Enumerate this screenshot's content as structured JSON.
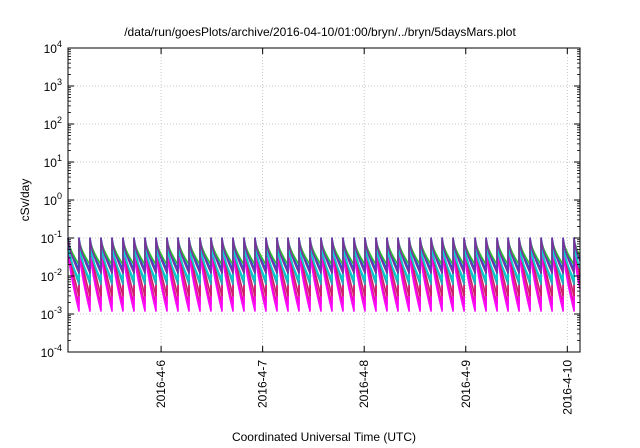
{
  "chart_data": {
    "type": "line",
    "title": "/data/run/goesPlots/archive/2016-04-10/01:00/bryn/../bryn/5daysMars.plot",
    "xlabel": "Coordinated Universal Time (UTC)",
    "ylabel": "cSv/day",
    "yscale": "log",
    "ylim": [
      0.0001,
      10000
    ],
    "xlim": [
      "2016-04-05 02:00",
      "2016-04-10 03:00"
    ],
    "grid": true,
    "x_ticks": [
      "2016-4-6",
      "2016-4-7",
      "2016-4-8",
      "2016-4-9",
      "2016-4-10"
    ],
    "y_ticks": [
      {
        "base": "10",
        "exp": "-4"
      },
      {
        "base": "10",
        "exp": "-3"
      },
      {
        "base": "10",
        "exp": "-2"
      },
      {
        "base": "10",
        "exp": "-1"
      },
      {
        "base": "10",
        "exp": "0"
      },
      {
        "base": "10",
        "exp": "1"
      },
      {
        "base": "10",
        "exp": "2"
      },
      {
        "base": "10",
        "exp": "3"
      },
      {
        "base": "10",
        "exp": "4"
      }
    ],
    "cycle_hours": 2.6,
    "series": [
      {
        "color": "#e8109a",
        "peak": 0.075,
        "trough": 0.0018
      },
      {
        "color": "#ff00ff",
        "peak": 0.055,
        "trough": 0.0012
      },
      {
        "color": "#cc1f66",
        "peak": 0.1,
        "trough": 0.003
      },
      {
        "color": "#2aa8b8",
        "peak": 0.085,
        "trough": 0.006
      },
      {
        "color": "#00d0d0",
        "peak": 0.06,
        "trough": 0.008
      },
      {
        "color": "#1e5bd6",
        "peak": 0.1,
        "trough": 0.015
      },
      {
        "color": "#2ec22e",
        "peak": 0.09,
        "trough": 0.02
      },
      {
        "color": "#7b2fa0",
        "peak": 0.095,
        "trough": 0.012
      }
    ]
  }
}
